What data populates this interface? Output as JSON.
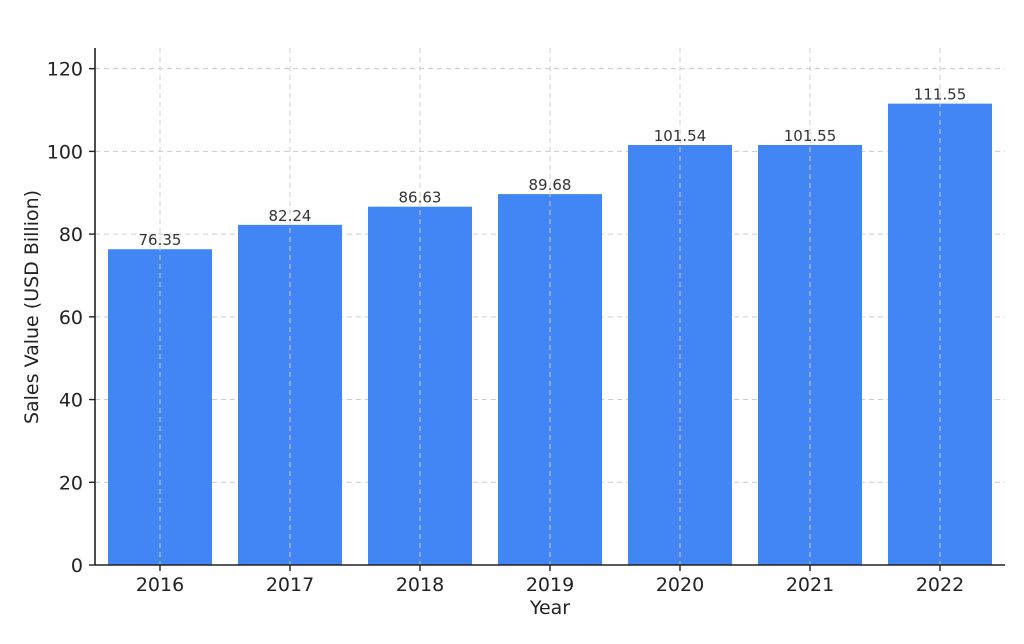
{
  "chart_data": {
    "type": "bar",
    "title": "",
    "xlabel": "Year",
    "ylabel": "Sales Value (USD Billion)",
    "categories": [
      "2016",
      "2017",
      "2018",
      "2019",
      "2020",
      "2021",
      "2022"
    ],
    "values": [
      76.35,
      82.24,
      86.63,
      89.68,
      101.54,
      101.55,
      111.55
    ],
    "data_labels": [
      "76.35",
      "82.24",
      "86.63",
      "89.68",
      "101.54",
      "101.55",
      "111.55"
    ],
    "ylim": [
      0,
      125
    ],
    "yticks": [
      0,
      20,
      40,
      60,
      80,
      100,
      120
    ],
    "grid": true,
    "bar_color": "#4285f4"
  }
}
